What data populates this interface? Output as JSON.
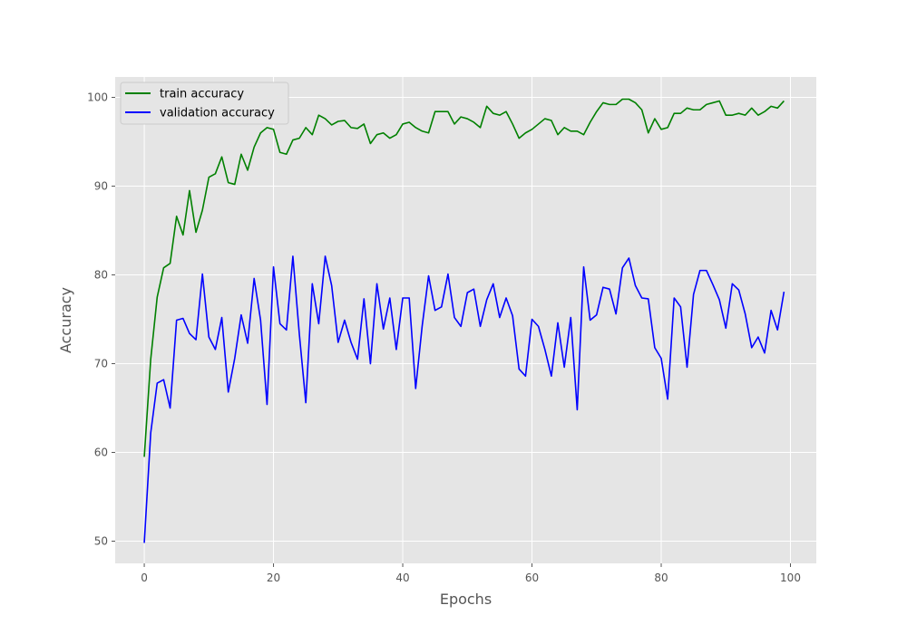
{
  "chart_data": {
    "type": "line",
    "title": "",
    "xlabel": "Epochs",
    "ylabel": "Accuracy",
    "xlim": [
      -4.5,
      104
    ],
    "ylim": [
      47.5,
      102.3
    ],
    "xticks": [
      0,
      20,
      40,
      60,
      80,
      100
    ],
    "yticks": [
      50,
      60,
      70,
      80,
      90,
      100
    ],
    "grid": true,
    "legend_position": "top-left",
    "plot_background": "#e5e5e5",
    "grid_color": "#ffffff",
    "x": [
      0,
      1,
      2,
      3,
      4,
      5,
      6,
      7,
      8,
      9,
      10,
      11,
      12,
      13,
      14,
      15,
      16,
      17,
      18,
      19,
      20,
      21,
      22,
      23,
      24,
      25,
      26,
      27,
      28,
      29,
      30,
      31,
      32,
      33,
      34,
      35,
      36,
      37,
      38,
      39,
      40,
      41,
      42,
      43,
      44,
      45,
      46,
      47,
      48,
      49,
      50,
      51,
      52,
      53,
      54,
      55,
      56,
      57,
      58,
      59,
      60,
      61,
      62,
      63,
      64,
      65,
      66,
      67,
      68,
      69,
      70,
      71,
      72,
      73,
      74,
      75,
      76,
      77,
      78,
      79,
      80,
      81,
      82,
      83,
      84,
      85,
      86,
      87,
      88,
      89,
      90,
      91,
      92,
      93,
      94,
      95,
      96,
      97,
      98,
      99
    ],
    "series": [
      {
        "name": "train accuracy",
        "color": "#008000",
        "values": [
          59.5,
          70.5,
          77.5,
          80.8,
          81.3,
          86.6,
          84.5,
          89.5,
          84.8,
          87.3,
          91.0,
          91.4,
          93.3,
          90.4,
          90.2,
          93.6,
          91.8,
          94.4,
          96.0,
          96.6,
          96.4,
          93.8,
          93.6,
          95.2,
          95.4,
          96.6,
          95.8,
          98.0,
          97.6,
          96.9,
          97.3,
          97.4,
          96.6,
          96.5,
          97.0,
          94.8,
          95.8,
          96.0,
          95.4,
          95.8,
          97.0,
          97.2,
          96.6,
          96.2,
          96.0,
          98.4,
          98.4,
          98.4,
          97.0,
          97.8,
          97.6,
          97.2,
          96.6,
          99.0,
          98.2,
          98.0,
          98.4,
          97.0,
          95.4,
          96.0,
          96.4,
          97.0,
          97.6,
          97.4,
          95.8,
          96.6,
          96.2,
          96.2,
          95.8,
          97.2,
          98.4,
          99.4,
          99.2,
          99.2,
          99.8,
          99.8,
          99.4,
          98.6,
          96.0,
          97.6,
          96.4,
          96.6,
          98.2,
          98.2,
          98.8,
          98.6,
          98.6,
          99.2,
          99.4,
          99.6,
          98.0,
          98.0,
          98.2,
          98.0,
          98.8,
          98.0,
          98.4,
          99.0,
          98.8,
          99.6
        ]
      },
      {
        "name": "validation accuracy",
        "color": "#0000ff",
        "values": [
          49.8,
          62.2,
          67.8,
          68.2,
          65.0,
          74.9,
          75.1,
          73.4,
          72.7,
          80.1,
          73.0,
          71.6,
          75.2,
          66.8,
          70.6,
          75.5,
          72.3,
          79.6,
          74.9,
          65.4,
          80.9,
          74.5,
          73.8,
          82.1,
          73.3,
          65.6,
          79.0,
          74.5,
          82.1,
          78.8,
          72.4,
          74.9,
          72.4,
          70.5,
          77.3,
          70.0,
          79.0,
          73.9,
          77.4,
          71.6,
          77.4,
          77.4,
          67.2,
          74.2,
          79.9,
          76.0,
          76.4,
          80.1,
          75.2,
          74.2,
          78.0,
          78.4,
          74.2,
          77.2,
          79.0,
          75.2,
          77.4,
          75.4,
          69.4,
          68.6,
          75.0,
          74.2,
          71.6,
          68.6,
          74.6,
          69.6,
          75.2,
          64.8,
          80.9,
          74.9,
          75.5,
          78.6,
          78.4,
          75.6,
          80.8,
          81.9,
          78.8,
          77.4,
          77.3,
          71.8,
          70.6,
          66.0,
          77.4,
          76.4,
          69.6,
          77.8,
          80.5,
          80.5,
          78.9,
          77.2,
          74.0,
          79.0,
          78.3,
          75.6,
          71.8,
          73.0,
          71.2,
          76.0,
          73.8,
          78.1
        ]
      }
    ]
  }
}
